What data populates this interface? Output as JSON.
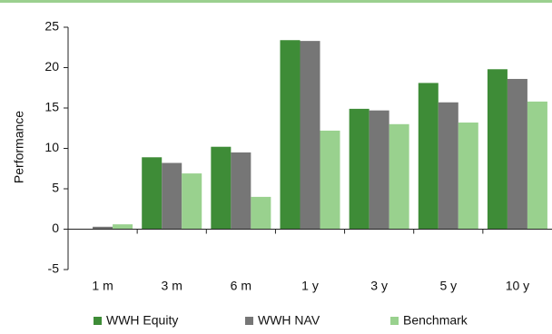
{
  "chart_data": {
    "type": "bar",
    "y_label": "Performance",
    "categories": [
      "1 m",
      "3 m",
      "6 m",
      "1 y",
      "3 y",
      "5 y",
      "10 y"
    ],
    "series": [
      {
        "name": "WWH Equity",
        "color": "#3e8c37",
        "values": [
          null,
          8.9,
          10.2,
          23.4,
          14.9,
          18.1,
          19.8
        ]
      },
      {
        "name": "WWH NAV",
        "color": "#767676",
        "values": [
          0.3,
          8.2,
          9.5,
          23.3,
          14.7,
          15.7,
          18.6
        ]
      },
      {
        "name": "Benchmark",
        "color": "#99d18e",
        "values": [
          0.6,
          6.9,
          4.0,
          12.2,
          13.0,
          13.2,
          15.8
        ]
      }
    ],
    "ylim": [
      -5,
      25
    ],
    "yticks": [
      -5,
      0,
      5,
      10,
      15,
      20,
      25
    ],
    "legend": "bottom"
  }
}
